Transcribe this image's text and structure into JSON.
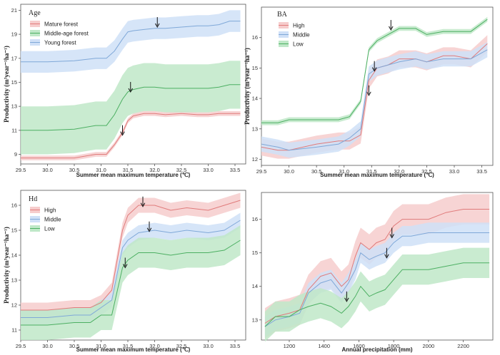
{
  "chart_data": [
    {
      "type": "line",
      "legend_title": "Age",
      "legend_position": "top-left",
      "xlabel": "Summer mean maximum temperature (℃)",
      "ylabel": "Productivity (m³year⁻¹ha⁻¹)",
      "xlim": [
        29.5,
        33.7
      ],
      "ylim": [
        8.2,
        21.5
      ],
      "xticks": [
        29.5,
        30.0,
        30.5,
        31.0,
        31.5,
        32.0,
        32.5,
        33.0,
        33.5
      ],
      "xtick_labels": [
        "29.5",
        "30.0",
        "30.5",
        "31.0",
        "31.5",
        "32.0",
        "32.5",
        "33.0",
        "33.5"
      ],
      "yticks": [
        9,
        11,
        13,
        15,
        17,
        19,
        21
      ],
      "ytick_labels": [
        "9",
        "11",
        "13",
        "15",
        "17",
        "19",
        "21"
      ],
      "x": [
        29.5,
        30.0,
        30.5,
        30.9,
        31.1,
        31.25,
        31.4,
        31.5,
        31.6,
        31.8,
        32.0,
        32.2,
        32.5,
        32.8,
        33.0,
        33.2,
        33.4,
        33.6
      ],
      "series": [
        {
          "name": "Mature forest",
          "color": "#e07b7b",
          "fill": "#f6cccc",
          "values": [
            8.7,
            8.7,
            8.7,
            9.0,
            9.0,
            9.8,
            10.8,
            11.8,
            12.2,
            12.4,
            12.4,
            12.3,
            12.4,
            12.3,
            12.3,
            12.4,
            12.4,
            12.4
          ],
          "band": 0.2
        },
        {
          "name": "Middle-age forest",
          "color": "#4caf62",
          "fill": "#bfe8c8",
          "values": [
            11.0,
            11.0,
            11.1,
            11.4,
            11.4,
            12.3,
            13.6,
            14.2,
            14.4,
            14.6,
            14.6,
            14.5,
            14.5,
            14.5,
            14.5,
            14.6,
            14.8,
            14.8
          ],
          "band": 2.0
        },
        {
          "name": "Young forest",
          "color": "#7fa8d8",
          "fill": "#cfe0f7",
          "values": [
            16.7,
            16.7,
            16.8,
            17.0,
            17.0,
            17.6,
            18.6,
            19.2,
            19.3,
            19.4,
            19.5,
            19.5,
            19.6,
            19.7,
            19.7,
            19.8,
            20.1,
            20.1
          ],
          "band": 0.9
        }
      ],
      "arrows": [
        [
          31.4,
          10.6
        ],
        [
          31.55,
          14.2
        ],
        [
          32.05,
          19.6
        ]
      ]
    },
    {
      "type": "line",
      "legend_title": "BA",
      "legend_position": "top-left",
      "xlabel": "Summer mean maximum temperature (℃)",
      "ylabel": "Productivity (m³year⁻¹ha⁻¹)",
      "xlim": [
        29.5,
        33.7
      ],
      "ylim": [
        11.8,
        17.0
      ],
      "xticks": [
        29.5,
        30.0,
        30.5,
        31.0,
        31.5,
        32.0,
        32.5,
        33.0,
        33.5
      ],
      "xtick_labels": [
        "29.5",
        "30.0",
        "30.5",
        "31.0",
        "31.5",
        "32.0",
        "32.5",
        "33.0",
        "33.5"
      ],
      "yticks": [
        12,
        13,
        14,
        15,
        16
      ],
      "ytick_labels": [
        "12",
        "13",
        "14",
        "15",
        "16"
      ],
      "x": [
        29.5,
        29.8,
        30.0,
        30.5,
        30.9,
        31.1,
        31.3,
        31.45,
        31.6,
        31.8,
        32.0,
        32.3,
        32.5,
        32.8,
        33.0,
        33.3,
        33.6
      ],
      "series": [
        {
          "name": "High",
          "color": "#e07b7b",
          "fill": "#f6cccc",
          "values": [
            12.4,
            12.3,
            12.3,
            12.5,
            12.6,
            12.6,
            12.8,
            14.6,
            15.0,
            15.1,
            15.3,
            15.3,
            15.2,
            15.4,
            15.4,
            15.3,
            15.8
          ],
          "band": 0.28
        },
        {
          "name": "Middle",
          "color": "#7fa8d8",
          "fill": "#cfe0f7",
          "values": [
            12.5,
            12.4,
            12.3,
            12.4,
            12.5,
            12.7,
            13.0,
            14.8,
            15.0,
            15.1,
            15.2,
            15.3,
            15.2,
            15.3,
            15.3,
            15.3,
            15.6
          ],
          "band": 0.25
        },
        {
          "name": "Low",
          "color": "#4caf62",
          "fill": "#bfe8c8",
          "values": [
            13.2,
            13.2,
            13.3,
            13.3,
            13.3,
            13.4,
            13.9,
            15.6,
            15.9,
            16.1,
            16.3,
            16.3,
            16.1,
            16.2,
            16.2,
            16.2,
            16.6
          ],
          "band": 0.08
        }
      ],
      "arrows": [
        [
          31.45,
          14.1
        ],
        [
          31.55,
          14.9
        ],
        [
          31.85,
          16.25
        ]
      ]
    },
    {
      "type": "line",
      "legend_title": "Hd",
      "legend_position": "top-left",
      "xlabel": "Summer mean maximum temperature (℃)",
      "ylabel": "Productivity (m³year⁻¹ha⁻¹)",
      "xlim": [
        29.5,
        33.7
      ],
      "ylim": [
        10.6,
        16.6
      ],
      "xticks": [
        29.5,
        30.0,
        30.5,
        31.0,
        31.5,
        32.0,
        32.5,
        33.0,
        33.5
      ],
      "xtick_labels": [
        "29.5",
        "30.0",
        "30.5",
        "31.0",
        "31.5",
        "32.0",
        "32.5",
        "33.0",
        "33.5"
      ],
      "yticks": [
        11,
        12,
        13,
        14,
        15,
        16
      ],
      "ytick_labels": [
        "11",
        "12",
        "13",
        "14",
        "15",
        "16"
      ],
      "x": [
        29.5,
        30.0,
        30.5,
        30.8,
        31.0,
        31.2,
        31.4,
        31.5,
        31.7,
        32.0,
        32.3,
        32.6,
        33.0,
        33.3,
        33.6
      ],
      "series": [
        {
          "name": "High",
          "color": "#e07b7b",
          "fill": "#f6cccc",
          "values": [
            11.8,
            11.8,
            11.9,
            11.9,
            12.1,
            12.6,
            15.0,
            15.6,
            16.0,
            16.0,
            15.8,
            15.9,
            15.8,
            16.0,
            16.2
          ],
          "band": 0.3
        },
        {
          "name": "Middle",
          "color": "#7fa8d8",
          "fill": "#cfe0f7",
          "values": [
            11.5,
            11.5,
            11.6,
            11.6,
            11.9,
            12.2,
            14.3,
            14.6,
            14.9,
            15.0,
            14.9,
            15.0,
            14.9,
            15.0,
            15.4
          ],
          "band": 0.3
        },
        {
          "name": "Low",
          "color": "#4caf62",
          "fill": "#bfe8c8",
          "values": [
            11.2,
            11.2,
            11.3,
            11.3,
            11.6,
            11.6,
            13.5,
            13.8,
            14.1,
            14.1,
            14.0,
            14.1,
            14.1,
            14.2,
            14.6
          ],
          "band": 0.6
        }
      ],
      "arrows": [
        [
          31.45,
          13.5
        ],
        [
          31.78,
          15.95
        ],
        [
          31.9,
          14.95
        ]
      ]
    },
    {
      "type": "line",
      "legend_title": "",
      "legend_position": "none",
      "xlabel": "Annual precipitation (mm)",
      "ylabel": "",
      "xlim": [
        1040,
        2370
      ],
      "ylim": [
        12.4,
        16.8
      ],
      "xticks": [
        1200,
        1400,
        1600,
        1800,
        2000,
        2200
      ],
      "xtick_labels": [
        "1200",
        "1400",
        "1600",
        "1800",
        "2000",
        "2200"
      ],
      "yticks": [
        13,
        14,
        15,
        16
      ],
      "ytick_labels": [
        "13",
        "14",
        "15",
        "16"
      ],
      "x": [
        1060,
        1120,
        1200,
        1260,
        1310,
        1380,
        1440,
        1500,
        1540,
        1580,
        1610,
        1660,
        1700,
        1750,
        1800,
        1850,
        1900,
        2000,
        2100,
        2200,
        2350
      ],
      "series": [
        {
          "name": "High",
          "color": "#e07b7b",
          "fill": "#f6cccc",
          "values": [
            12.9,
            13.1,
            13.2,
            13.3,
            13.9,
            14.3,
            14.4,
            14.0,
            14.2,
            14.9,
            15.3,
            15.1,
            15.3,
            15.4,
            15.8,
            16.0,
            16.0,
            16.0,
            16.2,
            16.3,
            16.3
          ],
          "band": 0.45
        },
        {
          "name": "Middle",
          "color": "#7fa8d8",
          "fill": "#cfe0f7",
          "values": [
            12.8,
            13.0,
            13.1,
            13.2,
            13.8,
            14.1,
            14.2,
            13.8,
            14.1,
            14.5,
            15.0,
            14.8,
            14.9,
            15.0,
            15.3,
            15.5,
            15.5,
            15.6,
            15.6,
            15.6,
            15.6
          ],
          "band": 0.3
        },
        {
          "name": "Low",
          "color": "#4caf62",
          "fill": "#bfe8c8",
          "values": [
            12.8,
            13.1,
            13.1,
            13.3,
            13.4,
            13.5,
            13.4,
            13.2,
            13.4,
            13.7,
            14.0,
            13.7,
            13.8,
            13.9,
            14.2,
            14.5,
            14.5,
            14.5,
            14.6,
            14.7,
            14.7
          ],
          "band": 0.45
        }
      ],
      "arrows": [
        [
          1530,
          13.55
        ],
        [
          1760,
          14.85
        ],
        [
          1790,
          15.45
        ]
      ]
    }
  ]
}
